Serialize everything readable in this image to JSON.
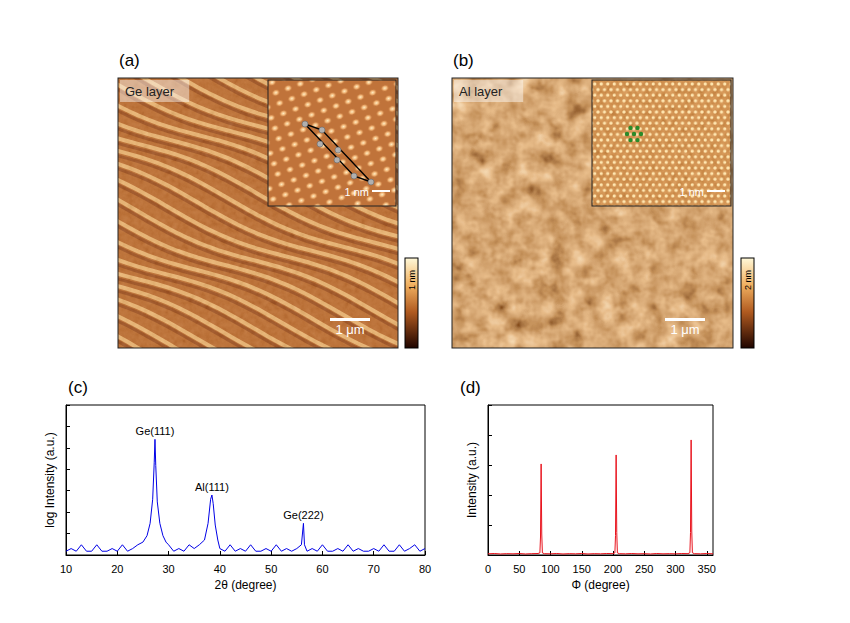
{
  "images": [
    {
      "panel": "(a)",
      "label": "Ge layer",
      "scale_bar": "1 μm",
      "inset_scale_bar": "1 nm",
      "colorbar_label": "1 nm"
    },
    {
      "panel": "(b)",
      "label": "Al layer",
      "scale_bar": "1 μm",
      "inset_scale_bar": "1 nm",
      "colorbar_label": "2 nm"
    }
  ],
  "chart_data": [
    {
      "type": "line",
      "title": "(c)",
      "x_label": "2θ (degree)",
      "y_label": "log Intensity (a.u.)",
      "x": [
        10,
        11,
        12,
        13,
        14,
        15,
        16,
        17,
        18,
        19,
        20,
        21,
        22,
        23,
        24,
        25,
        25.8,
        26.4,
        26.9,
        27.2,
        27.35,
        27.5,
        27.8,
        28.3,
        28.9,
        29.5,
        30,
        31,
        32,
        33,
        34,
        35,
        36,
        37,
        37.7,
        38.2,
        38.45,
        38.7,
        39.1,
        39.6,
        40,
        41,
        42,
        43,
        44,
        45,
        46,
        47,
        48,
        49,
        50,
        51,
        52,
        53,
        54,
        55,
        55.9,
        56.3,
        56.5,
        57,
        58,
        59,
        60,
        61,
        62,
        63,
        64,
        65,
        66,
        67,
        68,
        69,
        70,
        71,
        72,
        73,
        74,
        75,
        76,
        77,
        78,
        79,
        80
      ],
      "values": [
        1.5,
        2,
        1.5,
        3,
        1.5,
        1.5,
        3,
        1.5,
        1.5,
        2,
        1.5,
        3,
        1.5,
        2,
        3,
        4,
        8,
        30,
        400,
        20000,
        250000,
        15000,
        300,
        30,
        8,
        4,
        3,
        1.5,
        2,
        1.5,
        3,
        2,
        3,
        5,
        30,
        400,
        630,
        250,
        25,
        5,
        2,
        1.5,
        3,
        1.5,
        2,
        1.5,
        3,
        1.5,
        1.5,
        2,
        1.5,
        3,
        1.5,
        2,
        1.5,
        2,
        3,
        30,
        3,
        1.5,
        2,
        1.5,
        3,
        1.5,
        1.5,
        2,
        1.5,
        3,
        1.5,
        2,
        1.5,
        1.5,
        2,
        1.5,
        3,
        1.5,
        1.5,
        3,
        1.5,
        2,
        3,
        1.5,
        2
      ],
      "color": "#0000e6",
      "xlim": [
        10,
        80
      ],
      "xticks": [
        10,
        20,
        30,
        40,
        50,
        60,
        70,
        80
      ],
      "ylim": [
        1,
        10000000
      ],
      "yticks": [
        1,
        10,
        100,
        1000,
        10000,
        100000,
        1000000,
        10000000
      ],
      "log": "y",
      "grid": false,
      "tick_labels": "x",
      "annotations": [
        {
          "text": "Ge(111)",
          "x": 27.35
        },
        {
          "text": "Al(111)",
          "x": 38.45
        },
        {
          "text": "Ge(222)",
          "x": 56.3
        }
      ]
    },
    {
      "type": "line",
      "title": "(d)",
      "x_label": "Φ (degree)",
      "y_label": "Intensity (a.u.)",
      "x": [
        0,
        10,
        20,
        30,
        40,
        50,
        60,
        70,
        80,
        83,
        84,
        85,
        86,
        87,
        90,
        100,
        110,
        120,
        130,
        140,
        150,
        160,
        170,
        180,
        190,
        200,
        203,
        204,
        205,
        206,
        207,
        210,
        220,
        230,
        240,
        250,
        260,
        270,
        280,
        290,
        300,
        310,
        320,
        323,
        324,
        325,
        326,
        327,
        330,
        340,
        350,
        360
      ],
      "values": [
        8,
        10,
        7,
        9,
        8,
        10,
        7,
        9,
        10,
        14,
        120,
        607,
        140,
        14,
        9,
        8,
        10,
        7,
        9,
        8,
        10,
        7,
        9,
        8,
        10,
        9,
        14,
        130,
        667,
        150,
        14,
        9,
        8,
        10,
        8,
        9,
        7,
        10,
        8,
        9,
        8,
        10,
        9,
        15,
        150,
        767,
        160,
        15,
        9,
        8,
        10,
        8
      ],
      "color": "#e8121c",
      "xlim": [
        0,
        360
      ],
      "xticks": [
        0,
        50,
        100,
        150,
        200,
        250,
        300,
        350
      ],
      "ylim": [
        0,
        1000
      ],
      "yticks": [
        0,
        200,
        400,
        600,
        800,
        1000
      ],
      "grid": false,
      "tick_labels": "x"
    }
  ]
}
